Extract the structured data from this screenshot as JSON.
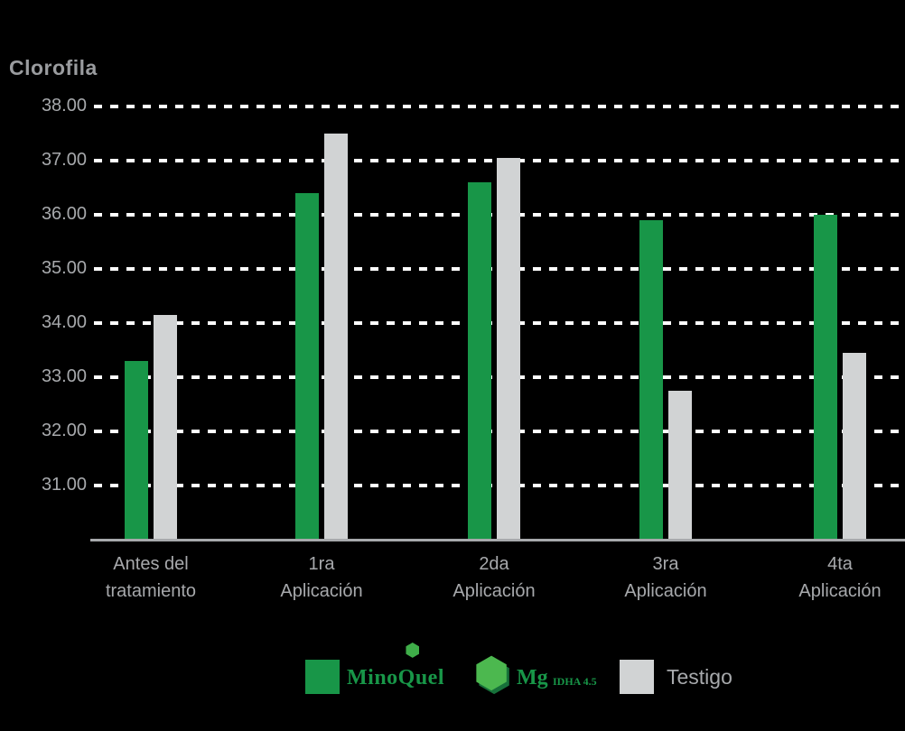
{
  "title": "Clorofila",
  "colors": {
    "background": "#000000",
    "green": "#189648",
    "gray": "#d1d3d4",
    "text": "#a7a9ac",
    "grid": "#ffffff"
  },
  "chart_data": {
    "type": "bar",
    "title": "Clorofila",
    "categories": [
      "Antes del\ntratamiento",
      "1ra\nAplicación",
      "2da\nAplicación",
      "3ra\nAplicación",
      "4ta\nAplicación"
    ],
    "series": [
      {
        "name": "MinoQuel Mg IDHA 4.5",
        "color": "#189648",
        "values": [
          33.3,
          36.4,
          36.6,
          35.9,
          36.0
        ]
      },
      {
        "name": "Testigo",
        "color": "#d1d3d4",
        "values": [
          34.15,
          37.5,
          37.05,
          32.75,
          33.45
        ]
      }
    ],
    "yticks": [
      31,
      32,
      33,
      34,
      35,
      36,
      37,
      38
    ],
    "ytick_labels": [
      "31.00",
      "32.00",
      "33.00",
      "34.00",
      "35.00",
      "36.00",
      "37.00",
      "38.00"
    ],
    "ylim": [
      30,
      38.3
    ],
    "grid": "horizontal-dashed",
    "legend_position": "bottom"
  },
  "legend": {
    "minoquel": {
      "name": "MinoQuel",
      "mg": "Mg",
      "idha": "IDHA 4.5",
      "hex_icon": "⬢"
    },
    "testigo_label": "Testigo"
  },
  "layout_numbers": {}
}
